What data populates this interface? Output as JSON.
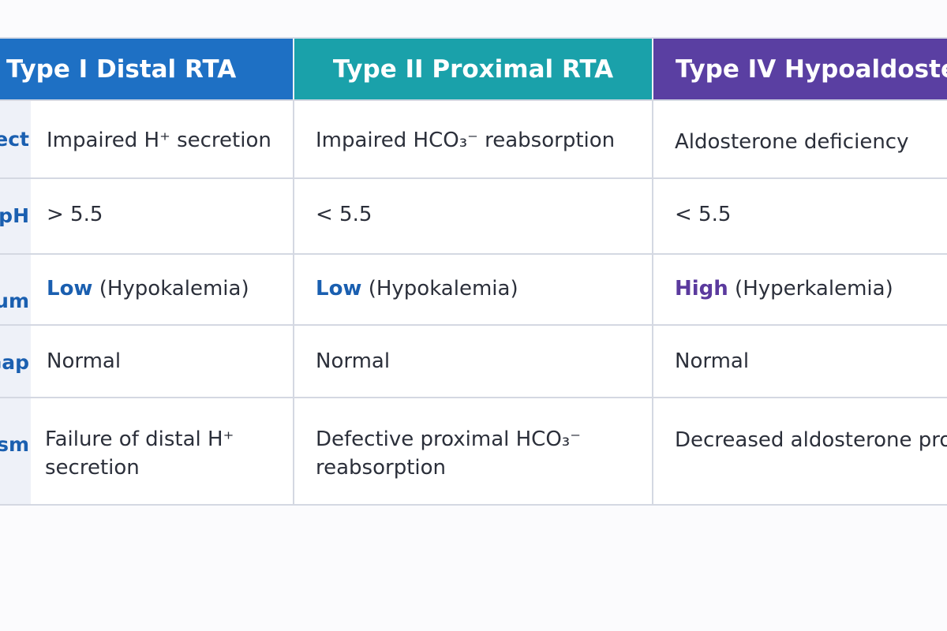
{
  "headers": {
    "type1": "Type I Distal RTA",
    "type2": "Type II Proximal RTA",
    "type4": "Type IV Hypoaldosteronism"
  },
  "rows": [
    {
      "label": "Defect",
      "type1": "Impaired H⁺ secretion",
      "type2": "Impaired HCO₃⁻ reabsorption",
      "type4": "Aldosterone deficiency"
    },
    {
      "label": "Urine pH",
      "type1": "> 5.5",
      "type2": "< 5.5",
      "type4": "< 5.5"
    },
    {
      "label": "Serum Potassium",
      "type1_strong": "Low",
      "type1_rest": " (Hypokalemia)",
      "type2_strong": "Low",
      "type2_rest": " (Hypokalemia)",
      "type4_strong": "High",
      "type4_rest": " (Hyperkalemia)"
    },
    {
      "label": "Anion Gap",
      "type1": "Normal",
      "type2": "Normal",
      "type4": "Normal"
    },
    {
      "label": "Mechanism",
      "type1_line1": "Failure of distal H⁺",
      "type1_line2": "secretion",
      "type2_line1": "Defective proximal HCO₃⁻",
      "type2_line2": "reabsorption",
      "type4": "Decreased aldosterone production"
    }
  ]
}
